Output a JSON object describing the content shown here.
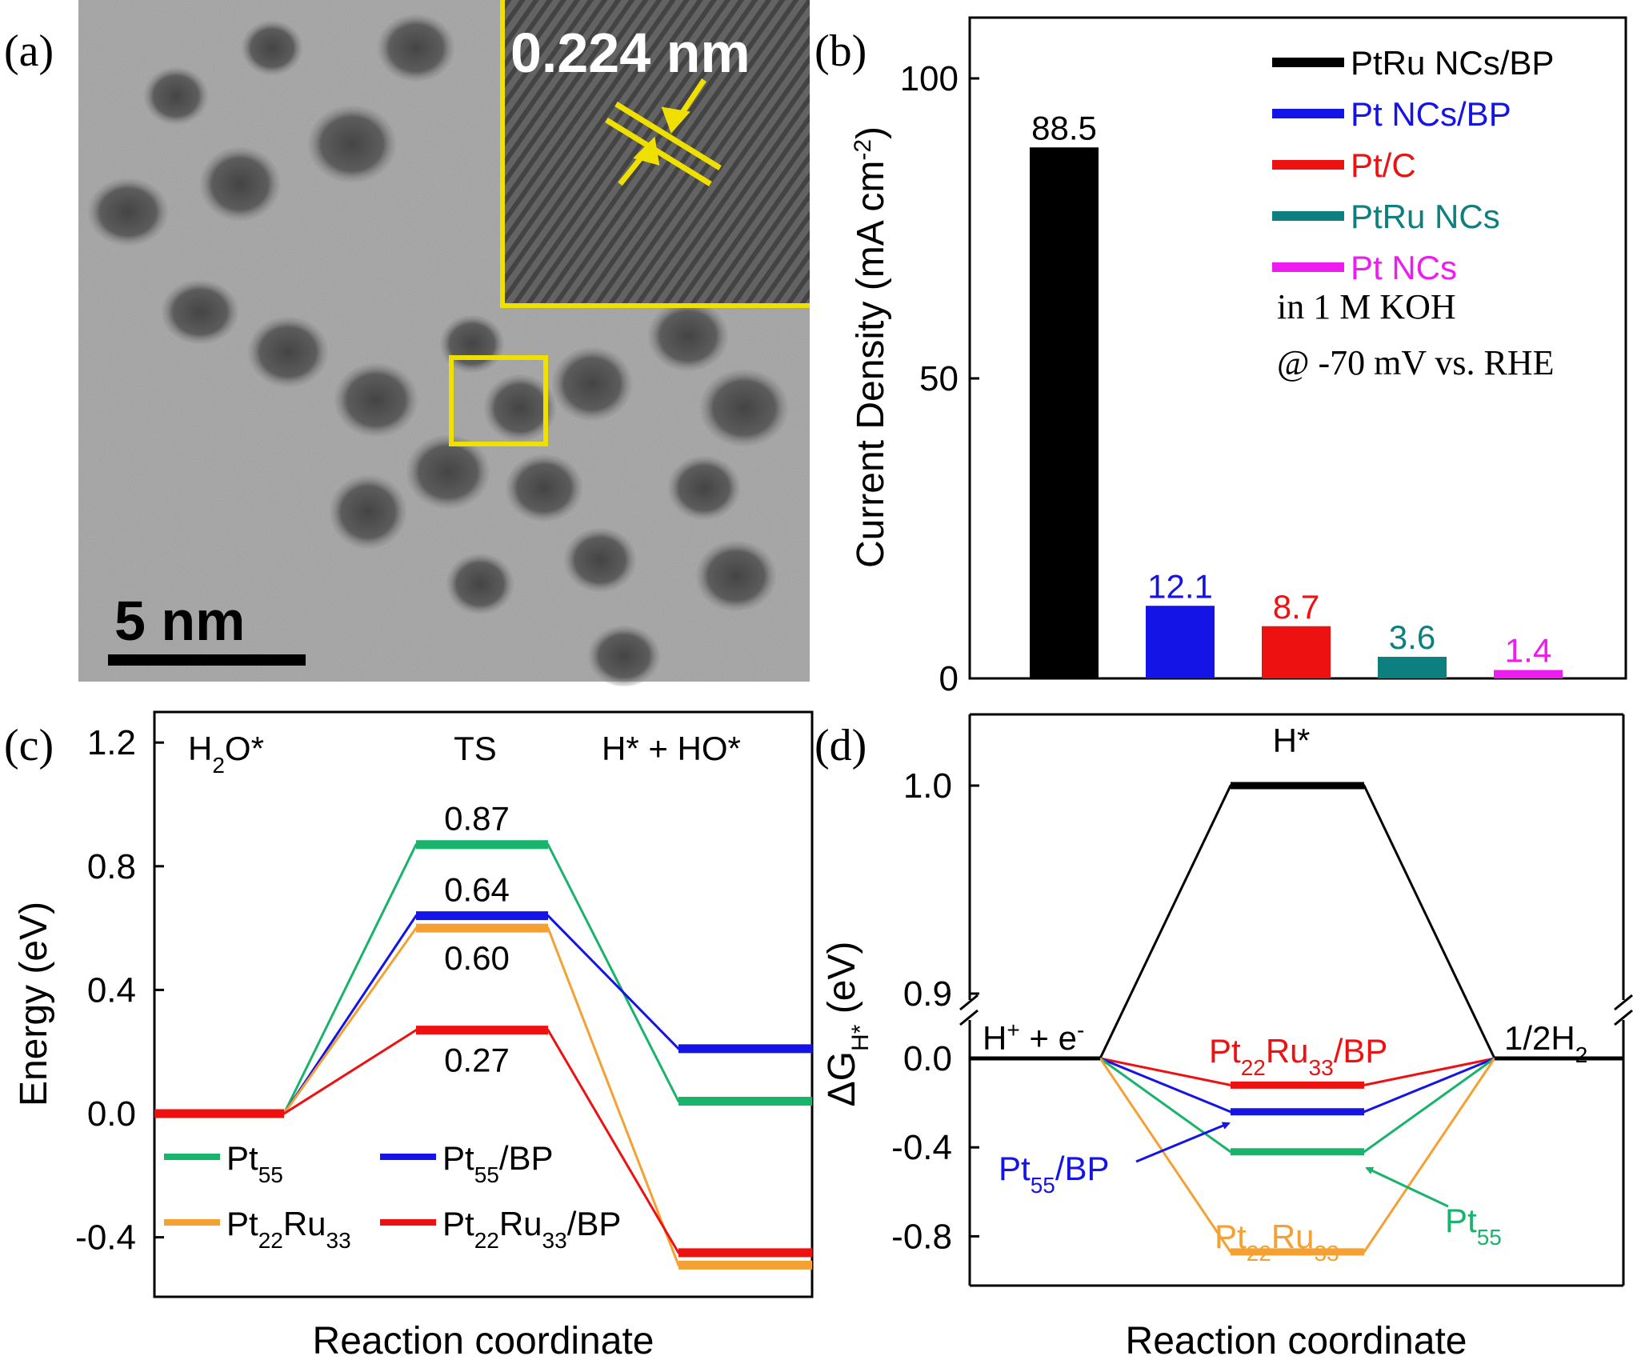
{
  "panel_labels": [
    "(a)",
    "(b)",
    "(c)",
    "(d)"
  ],
  "tem": {
    "scale_bar": "5 nm",
    "lattice": "0.224 nm",
    "box_color": "#f0e000"
  },
  "colors": {
    "black": "#000000",
    "blue": "#1414e6",
    "red": "#ee1111",
    "teal": "#0e7f7f",
    "magenta": "#ee1cee",
    "green": "#19b36b",
    "orange": "#f5a033"
  },
  "chart_data": [
    {
      "panel": "b",
      "type": "bar",
      "categories": [
        "PtRu NCs/BP",
        "Pt NCs/BP",
        "Pt/C",
        "PtRu NCs",
        "Pt NCs"
      ],
      "values": [
        88.5,
        12.1,
        8.7,
        3.6,
        1.4
      ],
      "value_labels": [
        "88.5",
        "12.1",
        "8.7",
        "3.6",
        "1.4"
      ],
      "colors": [
        "#000000",
        "#1414e6",
        "#ee1111",
        "#0e7f7f",
        "#ee1cee"
      ],
      "ylabel_main": "Current Density (mA cm",
      "ylabel_sup": "-2",
      "ylabel_close": ")",
      "ylim": [
        0,
        100
      ],
      "yticks": [
        0,
        50,
        100
      ],
      "note1": "in 1 M KOH",
      "note2": "@ -70 mV vs. RHE",
      "legend_position": "top-right"
    },
    {
      "panel": "c",
      "type": "line",
      "title_states": {
        "s1_main": "H",
        "s1_sub": "2",
        "s1_tail": "O*",
        "s2": "TS",
        "s3": "H* + HO*"
      },
      "xlabel": "Reaction coordinate",
      "ylabel": "Energy (eV)",
      "ylim": [
        -0.6,
        1.3
      ],
      "yticks": [
        -0.4,
        0.0,
        0.4,
        0.8,
        1.2
      ],
      "ytick_labels": [
        "-0.4",
        "0.0",
        "0.4",
        "0.8",
        "1.2"
      ],
      "series": [
        {
          "name": "Pt55",
          "color": "#19b36b",
          "values": [
            0.0,
            0.87,
            0.04
          ],
          "legend_main": "Pt",
          "legend_sub": "55",
          "legend_tail": ""
        },
        {
          "name": "Pt55/BP",
          "color": "#1414e6",
          "values": [
            0.0,
            0.64,
            0.21
          ],
          "legend_main": "Pt",
          "legend_sub": "55",
          "legend_tail": "/BP"
        },
        {
          "name": "Pt22Ru33",
          "color": "#f5a033",
          "values": [
            0.0,
            0.6,
            -0.49
          ],
          "legend_main": "Pt",
          "legend_sub": "22",
          "legend_mid": "Ru",
          "legend_sub2": "33",
          "legend_tail": ""
        },
        {
          "name": "Pt22Ru33/BP",
          "color": "#ee1111",
          "values": [
            0.0,
            0.27,
            -0.45
          ],
          "legend_main": "Pt",
          "legend_sub": "22",
          "legend_mid": "Ru",
          "legend_sub2": "33",
          "legend_tail": "/BP"
        }
      ],
      "ts_labels": [
        "0.87",
        "0.64",
        "0.60",
        "0.27"
      ]
    },
    {
      "panel": "d",
      "type": "line",
      "xlabel": "Reaction coordinate",
      "ylabel_main": "ΔG",
      "ylabel_sub": "H*",
      "ylabel_unit": " (eV)",
      "yaxis_break": true,
      "ylim_lower": [
        -0.95,
        0.15
      ],
      "ylim_upper": [
        0.88,
        1.04
      ],
      "yticks": [
        -0.8,
        -0.4,
        0.0,
        0.9,
        1.0
      ],
      "ytick_labels": [
        "-0.8",
        "-0.4",
        "0.0",
        "0.9",
        "1.0"
      ],
      "state_left_main": "H",
      "state_left_sup": "+",
      "state_left_tail": " + e",
      "state_left_sup2": "-",
      "state_right_main": "1/2H",
      "state_right_sub": "2",
      "state_top": "H*",
      "series": [
        {
          "name": "H*",
          "color": "#000000",
          "values": [
            0.0,
            1.0,
            0.0
          ]
        },
        {
          "name": "Pt22Ru33/BP",
          "color": "#ee1111",
          "values": [
            0.0,
            -0.12,
            0.0
          ]
        },
        {
          "name": "Pt55/BP",
          "color": "#1414e6",
          "values": [
            0.0,
            -0.24,
            0.0
          ]
        },
        {
          "name": "Pt55",
          "color": "#19b36b",
          "values": [
            0.0,
            -0.42,
            0.0
          ]
        },
        {
          "name": "Pt22Ru33",
          "color": "#f5a033",
          "values": [
            0.0,
            -0.87,
            0.0
          ]
        }
      ],
      "labels": {
        "red": {
          "main": "Pt",
          "sub": "22",
          "mid": "Ru",
          "sub2": "33",
          "tail": "/BP"
        },
        "blue": {
          "main": "Pt",
          "sub": "55",
          "tail": "/BP"
        },
        "green": {
          "main": "Pt",
          "sub": "55"
        },
        "orange": {
          "main": "Pt",
          "sub": "22",
          "mid": "Ru",
          "sub2": "33"
        }
      }
    }
  ]
}
